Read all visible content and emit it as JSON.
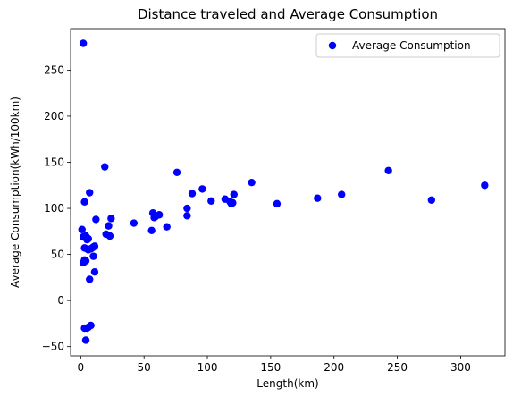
{
  "chart_data": {
    "type": "scatter",
    "title": "Distance traveled and Average Consumption",
    "xlabel": "Length(km)",
    "ylabel": "Average Consumption(kWh/100km)",
    "xlim": [
      -8,
      335
    ],
    "ylim": [
      -60,
      295
    ],
    "xticks": [
      0,
      50,
      100,
      150,
      200,
      250,
      300
    ],
    "yticks": [
      -50,
      0,
      50,
      100,
      150,
      200,
      250
    ],
    "grid": false,
    "legend": {
      "position": "top-right",
      "entries": [
        "Average Consumption"
      ]
    },
    "series": [
      {
        "name": "Average Consumption",
        "color": "#0000ff",
        "points": [
          [
            2,
            279
          ],
          [
            1,
            77
          ],
          [
            2,
            69
          ],
          [
            3,
            107
          ],
          [
            2,
            41
          ],
          [
            3,
            44
          ],
          [
            4,
            43
          ],
          [
            3,
            57
          ],
          [
            4,
            70
          ],
          [
            5,
            66
          ],
          [
            5,
            56
          ],
          [
            6,
            67
          ],
          [
            6,
            55
          ],
          [
            7,
            117
          ],
          [
            7,
            23
          ],
          [
            8,
            56
          ],
          [
            9,
            57
          ],
          [
            10,
            58
          ],
          [
            10,
            48
          ],
          [
            11,
            31
          ],
          [
            11,
            59
          ],
          [
            12,
            88
          ],
          [
            3,
            -30
          ],
          [
            4,
            -43
          ],
          [
            5,
            -30
          ],
          [
            6,
            -29
          ],
          [
            8,
            -27
          ],
          [
            19,
            145
          ],
          [
            20,
            72
          ],
          [
            22,
            81
          ],
          [
            23,
            70
          ],
          [
            24,
            89
          ],
          [
            42,
            84
          ],
          [
            56,
            76
          ],
          [
            57,
            95
          ],
          [
            58,
            90
          ],
          [
            59,
            91
          ],
          [
            62,
            93
          ],
          [
            68,
            80
          ],
          [
            76,
            139
          ],
          [
            84,
            100
          ],
          [
            84,
            92
          ],
          [
            88,
            116
          ],
          [
            96,
            121
          ],
          [
            103,
            108
          ],
          [
            114,
            110
          ],
          [
            118,
            107
          ],
          [
            119,
            105
          ],
          [
            121,
            115
          ],
          [
            120,
            106
          ],
          [
            135,
            128
          ],
          [
            155,
            105
          ],
          [
            187,
            111
          ],
          [
            206,
            115
          ],
          [
            243,
            141
          ],
          [
            277,
            109
          ],
          [
            319,
            125
          ]
        ]
      }
    ]
  }
}
